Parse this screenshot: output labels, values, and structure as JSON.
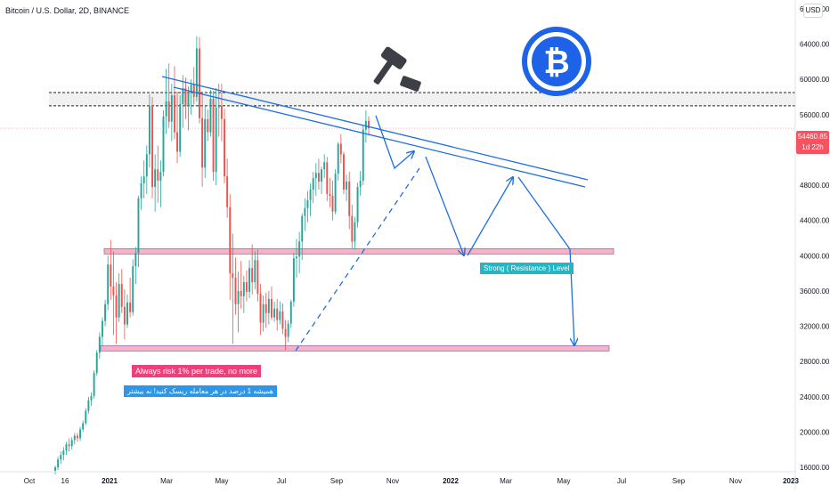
{
  "header": {
    "symbol_title": "Bitcoin / U.S. Dollar, 2D, BINANCE",
    "currency": "USD"
  },
  "price_label": {
    "value": "54460.85",
    "countdown": "1d 22h"
  },
  "annotations": {
    "resistance_label": "Strong ( Resistance ) Level",
    "risk_note_en": "Always risk 1% per trade, no more",
    "risk_note_fa": "همیشه 1 درصد در هر معامله ریسک کنید! نه بیشتر"
  },
  "icons": [
    "gavel-icon",
    "bitcoin-logo-icon"
  ],
  "colors": {
    "bull": "#26a69a",
    "bear": "#ef5350",
    "trendline": "#1e6fe0",
    "zone_fill": "#f4b3c9",
    "resistance_label_bg": "#26b5c2",
    "risk_en_bg": "#ec407a",
    "risk_fa_bg": "#2f95e8",
    "bitcoin_blue": "#1e62e8"
  },
  "chart_data": {
    "type": "candlestick",
    "title": "Bitcoin / U.S. Dollar, 2D, BINANCE",
    "x_tick_labels": [
      "Oct",
      "16",
      "2021",
      "Mar",
      "May",
      "Jul",
      "Sep",
      "Nov",
      "2022",
      "Mar",
      "May",
      "Jul",
      "Sep",
      "Nov",
      "2023"
    ],
    "y_tick_labels": [
      "68000.00",
      "64000.00",
      "60000.00",
      "56000.00",
      "52000.00",
      "48000.00",
      "44000.00",
      "40000.00",
      "36000.00",
      "32000.00",
      "28000.00",
      "24000.00",
      "20000.00",
      "16000.00"
    ],
    "ylim": [
      15500,
      69000
    ],
    "last_price": 54460.85,
    "levels": [
      {
        "kind": "resistance_zone",
        "value": 40500
      },
      {
        "kind": "support_zone",
        "value": 29500
      },
      {
        "kind": "dashed_zone",
        "range": [
          57000,
          58500
        ]
      }
    ],
    "candles": [
      {
        "o": 15600,
        "h": 16200,
        "l": 15200,
        "c": 16000
      },
      {
        "o": 16000,
        "h": 17200,
        "l": 15700,
        "c": 16900
      },
      {
        "o": 16900,
        "h": 17800,
        "l": 16400,
        "c": 17400
      },
      {
        "o": 17400,
        "h": 18300,
        "l": 16800,
        "c": 17900
      },
      {
        "o": 17900,
        "h": 18900,
        "l": 17400,
        "c": 18600
      },
      {
        "o": 18600,
        "h": 19300,
        "l": 17800,
        "c": 18400
      },
      {
        "o": 18400,
        "h": 19400,
        "l": 18000,
        "c": 19100
      },
      {
        "o": 19100,
        "h": 19900,
        "l": 18600,
        "c": 19600
      },
      {
        "o": 19600,
        "h": 19900,
        "l": 18900,
        "c": 19300
      },
      {
        "o": 19300,
        "h": 20600,
        "l": 19000,
        "c": 20300
      },
      {
        "o": 20300,
        "h": 21300,
        "l": 20000,
        "c": 21000
      },
      {
        "o": 21000,
        "h": 22700,
        "l": 20800,
        "c": 22400
      },
      {
        "o": 22400,
        "h": 24000,
        "l": 22100,
        "c": 23600
      },
      {
        "o": 23600,
        "h": 24500,
        "l": 23000,
        "c": 24100
      },
      {
        "o": 24100,
        "h": 27000,
        "l": 23800,
        "c": 26700
      },
      {
        "o": 26700,
        "h": 29300,
        "l": 26400,
        "c": 29000
      },
      {
        "o": 29000,
        "h": 31300,
        "l": 28300,
        "c": 30800
      },
      {
        "o": 30800,
        "h": 33000,
        "l": 29800,
        "c": 32600
      },
      {
        "o": 32600,
        "h": 35000,
        "l": 32000,
        "c": 34500
      },
      {
        "o": 34500,
        "h": 40000,
        "l": 33800,
        "c": 39000
      },
      {
        "o": 39000,
        "h": 41800,
        "l": 35000,
        "c": 36500
      },
      {
        "o": 36500,
        "h": 40500,
        "l": 31000,
        "c": 35500
      },
      {
        "o": 35500,
        "h": 37000,
        "l": 30000,
        "c": 33000
      },
      {
        "o": 33000,
        "h": 38000,
        "l": 32500,
        "c": 36800
      },
      {
        "o": 36800,
        "h": 38500,
        "l": 33500,
        "c": 34200
      },
      {
        "o": 34200,
        "h": 36200,
        "l": 30500,
        "c": 32200
      },
      {
        "o": 32200,
        "h": 35600,
        "l": 31800,
        "c": 34700
      },
      {
        "o": 34700,
        "h": 37500,
        "l": 33000,
        "c": 33600
      },
      {
        "o": 33600,
        "h": 39600,
        "l": 33200,
        "c": 38800
      },
      {
        "o": 38800,
        "h": 41000,
        "l": 36800,
        "c": 40300
      },
      {
        "o": 40300,
        "h": 46800,
        "l": 38700,
        "c": 46500
      },
      {
        "o": 46500,
        "h": 49000,
        "l": 45200,
        "c": 48200
      },
      {
        "o": 48200,
        "h": 50800,
        "l": 46500,
        "c": 49000
      },
      {
        "o": 49000,
        "h": 52500,
        "l": 47000,
        "c": 51500
      },
      {
        "o": 51500,
        "h": 58300,
        "l": 50000,
        "c": 57000
      },
      {
        "o": 57000,
        "h": 58000,
        "l": 46500,
        "c": 47800
      },
      {
        "o": 47800,
        "h": 51500,
        "l": 45000,
        "c": 49800
      },
      {
        "o": 49800,
        "h": 52500,
        "l": 46000,
        "c": 48500
      },
      {
        "o": 48500,
        "h": 50800,
        "l": 45500,
        "c": 49500
      },
      {
        "o": 49500,
        "h": 56500,
        "l": 49000,
        "c": 55800
      },
      {
        "o": 55800,
        "h": 61200,
        "l": 53800,
        "c": 57500
      },
      {
        "o": 57500,
        "h": 61800,
        "l": 54500,
        "c": 55200
      },
      {
        "o": 55200,
        "h": 59500,
        "l": 53000,
        "c": 58200
      },
      {
        "o": 58200,
        "h": 61500,
        "l": 53200,
        "c": 54000
      },
      {
        "o": 54000,
        "h": 58600,
        "l": 50500,
        "c": 51800
      },
      {
        "o": 51800,
        "h": 58200,
        "l": 51200,
        "c": 57200
      },
      {
        "o": 57200,
        "h": 60500,
        "l": 54500,
        "c": 59000
      },
      {
        "o": 59000,
        "h": 60200,
        "l": 55500,
        "c": 57000
      },
      {
        "o": 57000,
        "h": 59200,
        "l": 54200,
        "c": 58400
      },
      {
        "o": 58400,
        "h": 60000,
        "l": 56000,
        "c": 59400
      },
      {
        "o": 59400,
        "h": 61400,
        "l": 57200,
        "c": 58000
      },
      {
        "o": 58000,
        "h": 64900,
        "l": 57500,
        "c": 63500
      },
      {
        "o": 63500,
        "h": 64800,
        "l": 55000,
        "c": 55600
      },
      {
        "o": 55600,
        "h": 58500,
        "l": 47800,
        "c": 50000
      },
      {
        "o": 50000,
        "h": 57000,
        "l": 48800,
        "c": 55500
      },
      {
        "o": 55500,
        "h": 56600,
        "l": 53000,
        "c": 54000
      },
      {
        "o": 54000,
        "h": 58800,
        "l": 53500,
        "c": 57800
      },
      {
        "o": 57800,
        "h": 58700,
        "l": 48500,
        "c": 49500
      },
      {
        "o": 49500,
        "h": 59000,
        "l": 48000,
        "c": 56800
      },
      {
        "o": 56800,
        "h": 59500,
        "l": 53500,
        "c": 57000
      },
      {
        "o": 57000,
        "h": 59500,
        "l": 53000,
        "c": 55500
      },
      {
        "o": 55500,
        "h": 56700,
        "l": 48200,
        "c": 49000
      },
      {
        "o": 49000,
        "h": 51000,
        "l": 44300,
        "c": 45500
      },
      {
        "o": 45500,
        "h": 47000,
        "l": 35000,
        "c": 38000
      },
      {
        "o": 38000,
        "h": 42500,
        "l": 30000,
        "c": 37500
      },
      {
        "o": 37500,
        "h": 39800,
        "l": 33300,
        "c": 34500
      },
      {
        "o": 34500,
        "h": 38200,
        "l": 31300,
        "c": 36000
      },
      {
        "o": 36000,
        "h": 39400,
        "l": 34000,
        "c": 35400
      },
      {
        "o": 35400,
        "h": 37700,
        "l": 33500,
        "c": 37000
      },
      {
        "o": 37000,
        "h": 38300,
        "l": 34800,
        "c": 35900
      },
      {
        "o": 35900,
        "h": 39500,
        "l": 35200,
        "c": 38600
      },
      {
        "o": 38600,
        "h": 41300,
        "l": 35600,
        "c": 37000
      },
      {
        "o": 37000,
        "h": 40500,
        "l": 36200,
        "c": 39500
      },
      {
        "o": 39500,
        "h": 40700,
        "l": 34800,
        "c": 35700
      },
      {
        "o": 35700,
        "h": 36800,
        "l": 31000,
        "c": 32400
      },
      {
        "o": 32400,
        "h": 35500,
        "l": 31400,
        "c": 34500
      },
      {
        "o": 34500,
        "h": 35800,
        "l": 31800,
        "c": 33500
      },
      {
        "o": 33500,
        "h": 36000,
        "l": 32200,
        "c": 35100
      },
      {
        "o": 35100,
        "h": 36500,
        "l": 32700,
        "c": 33000
      },
      {
        "o": 33000,
        "h": 34800,
        "l": 32500,
        "c": 34000
      },
      {
        "o": 34000,
        "h": 35100,
        "l": 31500,
        "c": 32700
      },
      {
        "o": 32700,
        "h": 34800,
        "l": 32200,
        "c": 33700
      },
      {
        "o": 33700,
        "h": 34600,
        "l": 31100,
        "c": 31700
      },
      {
        "o": 31700,
        "h": 32700,
        "l": 29300,
        "c": 30800
      },
      {
        "o": 30800,
        "h": 32700,
        "l": 30200,
        "c": 32300
      },
      {
        "o": 32300,
        "h": 35000,
        "l": 31800,
        "c": 34800
      },
      {
        "o": 34800,
        "h": 40300,
        "l": 34200,
        "c": 39700
      },
      {
        "o": 39700,
        "h": 41900,
        "l": 37500,
        "c": 39900
      },
      {
        "o": 39900,
        "h": 42700,
        "l": 38000,
        "c": 41600
      },
      {
        "o": 41600,
        "h": 44800,
        "l": 39500,
        "c": 44500
      },
      {
        "o": 44500,
        "h": 46500,
        "l": 42800,
        "c": 45400
      },
      {
        "o": 45400,
        "h": 47300,
        "l": 43800,
        "c": 46300
      },
      {
        "o": 46300,
        "h": 48200,
        "l": 44500,
        "c": 47500
      },
      {
        "o": 47500,
        "h": 49500,
        "l": 46000,
        "c": 48800
      },
      {
        "o": 48800,
        "h": 50500,
        "l": 46800,
        "c": 49400
      },
      {
        "o": 49400,
        "h": 51000,
        "l": 47500,
        "c": 48400
      },
      {
        "o": 48400,
        "h": 50100,
        "l": 47000,
        "c": 49800
      },
      {
        "o": 49800,
        "h": 51500,
        "l": 48800,
        "c": 50600
      },
      {
        "o": 50600,
        "h": 51200,
        "l": 46200,
        "c": 47000
      },
      {
        "o": 47000,
        "h": 48800,
        "l": 45500,
        "c": 46800
      },
      {
        "o": 46800,
        "h": 48500,
        "l": 44000,
        "c": 45000
      },
      {
        "o": 45000,
        "h": 49800,
        "l": 44700,
        "c": 49300
      },
      {
        "o": 49300,
        "h": 52900,
        "l": 48500,
        "c": 52700
      },
      {
        "o": 52700,
        "h": 53800,
        "l": 50500,
        "c": 51500
      },
      {
        "o": 51500,
        "h": 51800,
        "l": 47000,
        "c": 47500
      },
      {
        "o": 47500,
        "h": 49200,
        "l": 46200,
        "c": 48400
      },
      {
        "o": 48400,
        "h": 49500,
        "l": 43000,
        "c": 44500
      },
      {
        "o": 44500,
        "h": 45800,
        "l": 40800,
        "c": 41600
      },
      {
        "o": 41600,
        "h": 44400,
        "l": 40700,
        "c": 43800
      },
      {
        "o": 43800,
        "h": 48300,
        "l": 43200,
        "c": 47800
      },
      {
        "o": 47800,
        "h": 49600,
        "l": 46800,
        "c": 48500
      },
      {
        "o": 48500,
        "h": 54800,
        "l": 48000,
        "c": 54300
      },
      {
        "o": 54300,
        "h": 56500,
        "l": 52800,
        "c": 55300
      },
      {
        "o": 55300,
        "h": 55800,
        "l": 53600,
        "c": 54460.85
      }
    ]
  }
}
